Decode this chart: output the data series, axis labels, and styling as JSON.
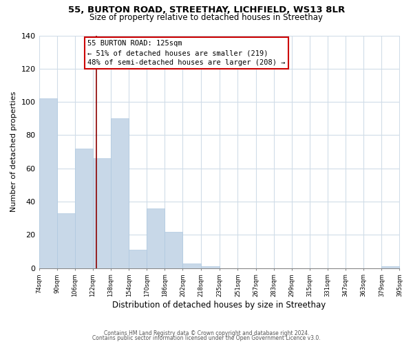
{
  "title": "55, BURTON ROAD, STREETHAY, LICHFIELD, WS13 8LR",
  "subtitle": "Size of property relative to detached houses in Streethay",
  "xlabel": "Distribution of detached houses by size in Streethay",
  "ylabel": "Number of detached properties",
  "bar_edges": [
    74,
    90,
    106,
    122,
    138,
    154,
    170,
    186,
    202,
    218,
    235,
    251,
    267,
    283,
    299,
    315,
    331,
    347,
    363,
    379,
    395
  ],
  "bar_heights": [
    102,
    33,
    72,
    66,
    90,
    11,
    36,
    22,
    3,
    1,
    0,
    0,
    0,
    0,
    0,
    0,
    0,
    0,
    0,
    1
  ],
  "tick_labels": [
    "74sqm",
    "90sqm",
    "106sqm",
    "122sqm",
    "138sqm",
    "154sqm",
    "170sqm",
    "186sqm",
    "202sqm",
    "218sqm",
    "235sqm",
    "251sqm",
    "267sqm",
    "283sqm",
    "299sqm",
    "315sqm",
    "331sqm",
    "347sqm",
    "363sqm",
    "379sqm",
    "395sqm"
  ],
  "bar_color": "#c8d8e8",
  "bar_edge_color": "#aec8e0",
  "grid_color": "#d0dce8",
  "vline_color": "#8b0000",
  "annotation_text_line1": "55 BURTON ROAD: 125sqm",
  "annotation_text_line2": "← 51% of detached houses are smaller (219)",
  "annotation_text_line3": "48% of semi-detached houses are larger (208) →",
  "box_edge_color": "#cc0000",
  "ylim": [
    0,
    140
  ],
  "footnote1": "Contains HM Land Registry data © Crown copyright and database right 2024.",
  "footnote2": "Contains public sector information licensed under the Open Government Licence v3.0."
}
